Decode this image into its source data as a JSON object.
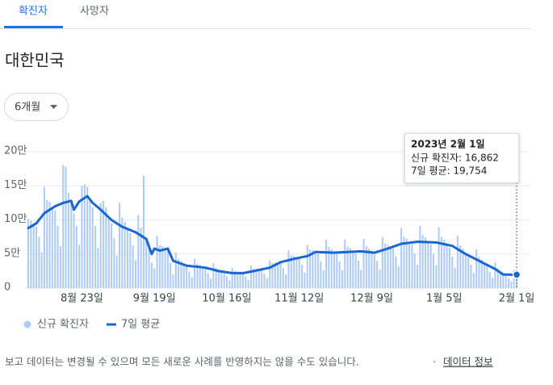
{
  "tabs": [
    "확진자",
    "사망자"
  ],
  "heading": "대한민국",
  "dropdown": "6개월",
  "footer": {
    "note": "보고 데이터는 변경될 수 있으며 모든 새로운 사례를 반영하지는 않을 수도 있습니다.",
    "separator": "·",
    "link": "데이터 정보"
  },
  "chart_data": {
    "type": "bar",
    "categories": [
      null,
      null,
      null,
      null,
      null,
      null,
      null,
      null,
      null,
      null,
      null,
      null,
      null,
      null,
      null,
      null,
      null,
      null,
      null,
      null,
      "8월 23일",
      null,
      null,
      null,
      null,
      null,
      null,
      null,
      null,
      null,
      null,
      null,
      null,
      null,
      null,
      null,
      null,
      null,
      null,
      null,
      null,
      null,
      null,
      null,
      null,
      null,
      null,
      "9월 19일",
      null,
      null,
      null,
      null,
      null,
      null,
      null,
      null,
      null,
      null,
      null,
      null,
      null,
      null,
      null,
      null,
      null,
      null,
      null,
      null,
      null,
      null,
      null,
      null,
      null,
      null,
      "10월 16일",
      null,
      null,
      null,
      null,
      null,
      null,
      null,
      null,
      null,
      null,
      null,
      null,
      null,
      null,
      null,
      null,
      null,
      null,
      null,
      null,
      null,
      null,
      null,
      null,
      null,
      null,
      "11월 12일",
      null,
      null,
      null,
      null,
      null,
      null,
      null,
      null,
      null,
      null,
      null,
      null,
      null,
      null,
      null,
      null,
      null,
      null,
      null,
      null,
      null,
      null,
      null,
      null,
      null,
      null,
      "12월 9일",
      null,
      null,
      null,
      null,
      null,
      null,
      null,
      null,
      null,
      null,
      null,
      null,
      null,
      null,
      null,
      null,
      null,
      null,
      null,
      null,
      null,
      null,
      null,
      null,
      null,
      null,
      "1월 5일",
      null,
      null,
      null,
      null,
      null,
      null,
      null,
      null,
      null,
      null,
      null,
      null,
      null,
      null,
      null,
      null,
      null,
      null,
      null,
      null,
      null,
      null,
      null,
      null,
      null,
      null,
      "2월 1일"
    ],
    "series": [
      {
        "name": "신규 확진자",
        "type": "bar",
        "color": "#aecbfa",
        "values": [
          101200,
          99300,
          92700,
          90300,
          75000,
          52500,
          148500,
          129400,
          126500,
          117500,
          114000,
          91300,
          61700,
          180500,
          178000,
          139700,
          128000,
          109300,
          90800,
          63500,
          150000,
          152100,
          148500,
          130000,
          118800,
          91300,
          59200,
          125000,
          128000,
          118300,
          103800,
          95000,
          73100,
          47500,
          124900,
          103500,
          97200,
          86800,
          80900,
          62700,
          41000,
          107300,
          88600,
          165000,
          72000,
          58000,
          37500,
          29000,
          76300,
          63300,
          61600,
          57000,
          55100,
          36800,
          20000,
          52100,
          42800,
          39400,
          34400,
          31400,
          24500,
          16100,
          42800,
          36000,
          34000,
          30400,
          28500,
          21800,
          14000,
          36500,
          29900,
          27500,
          24400,
          22600,
          17400,
          11300,
          29700,
          25300,
          24200,
          22000,
          20900,
          17100,
          11800,
          32800,
          28800,
          28400,
          26700,
          26100,
          21200,
          14600,
          40500,
          36800,
          37400,
          36000,
          36100,
          29300,
          20000,
          55400,
          48300,
          47300,
          43800,
          42400,
          34100,
          23100,
          63500,
          56400,
          56100,
          53000,
          50300,
          39500,
          26300,
          70700,
          60100,
          57300,
          52000,
          49600,
          39300,
          26300,
          71300,
          61000,
          58500,
          53400,
          50900,
          40400,
          27000,
          72400,
          61200,
          58100,
          52400,
          49400,
          39900,
          27200,
          75100,
          65300,
          63800,
          59400,
          57800,
          46700,
          31800,
          87800,
          75300,
          72600,
          66500,
          63700,
          50600,
          34000,
          91700,
          77900,
          74400,
          67400,
          63900,
          50300,
          33500,
          89400,
          75100,
          71000,
          63700,
          59700,
          46500,
          29800,
          77200,
          63000,
          57600,
          50000,
          45600,
          34500,
          22000,
          56700,
          46000,
          41800,
          36000,
          32300,
          24000,
          15000,
          37800,
          29100,
          25000,
          20000,
          18900,
          14900,
          9900,
          26500,
          16862
        ]
      },
      {
        "name": "7일 평균",
        "type": "line",
        "color": "#1967d2",
        "values": [
          88000,
          90300,
          92700,
          95000,
          100000,
          105000,
          110000,
          112500,
          115000,
          117500,
          120000,
          121700,
          123300,
          125000,
          126000,
          127000,
          128000,
          115000,
          121000,
          127000,
          129700,
          132300,
          135000,
          130000,
          125000,
          121700,
          118300,
          115000,
          111300,
          107500,
          103800,
          100000,
          97500,
          95000,
          92500,
          90000,
          88400,
          86800,
          85200,
          83600,
          82000,
          79500,
          77000,
          74500,
          72000,
          61000,
          50000,
          58000,
          56500,
          55000,
          56000,
          57000,
          58000,
          49000,
          40000,
          38600,
          37200,
          35800,
          34400,
          33000,
          32600,
          32100,
          31700,
          31300,
          30900,
          30400,
          30000,
          29000,
          28000,
          27000,
          26000,
          25000,
          24400,
          23800,
          23200,
          22600,
          22000,
          22000,
          22000,
          22000,
          22000,
          22800,
          23500,
          24300,
          25000,
          25800,
          26700,
          27500,
          28300,
          29200,
          30000,
          32000,
          34000,
          36000,
          38000,
          39000,
          40000,
          41000,
          42000,
          43000,
          43800,
          44600,
          45400,
          46200,
          47000,
          49000,
          51000,
          53000,
          52900,
          52700,
          52600,
          52400,
          52300,
          52100,
          52000,
          52200,
          52400,
          52600,
          52800,
          53000,
          53200,
          53400,
          53600,
          53800,
          54000,
          53600,
          53200,
          52800,
          52400,
          52000,
          53200,
          54400,
          55600,
          56800,
          58000,
          59400,
          60800,
          62200,
          63600,
          65000,
          65500,
          66000,
          66500,
          67000,
          67500,
          68000,
          67900,
          67700,
          67600,
          67400,
          67300,
          67100,
          67000,
          66200,
          65300,
          64500,
          63700,
          62800,
          62000,
          59600,
          57200,
          54800,
          52400,
          50000,
          48000,
          46000,
          44000,
          42000,
          40000,
          38000,
          36000,
          34000,
          32000,
          30000,
          28000,
          25300,
          22700,
          20000,
          19900,
          19800,
          19700,
          19600,
          19754
        ]
      }
    ],
    "ylim": [
      0,
      200000
    ],
    "yticks": [
      0,
      {
        "value": 50000,
        "label": "5만"
      },
      {
        "value": 100000,
        "label": "10만"
      },
      {
        "value": 150000,
        "label": "15만"
      },
      {
        "value": 200000,
        "label": "20만"
      }
    ],
    "grid": true,
    "legend": "bottom-left",
    "tooltip": {
      "title": "2023년 2월 1일",
      "lines": [
        "신규 확진자: 16,862",
        "7일 평균: 19,754"
      ]
    }
  }
}
